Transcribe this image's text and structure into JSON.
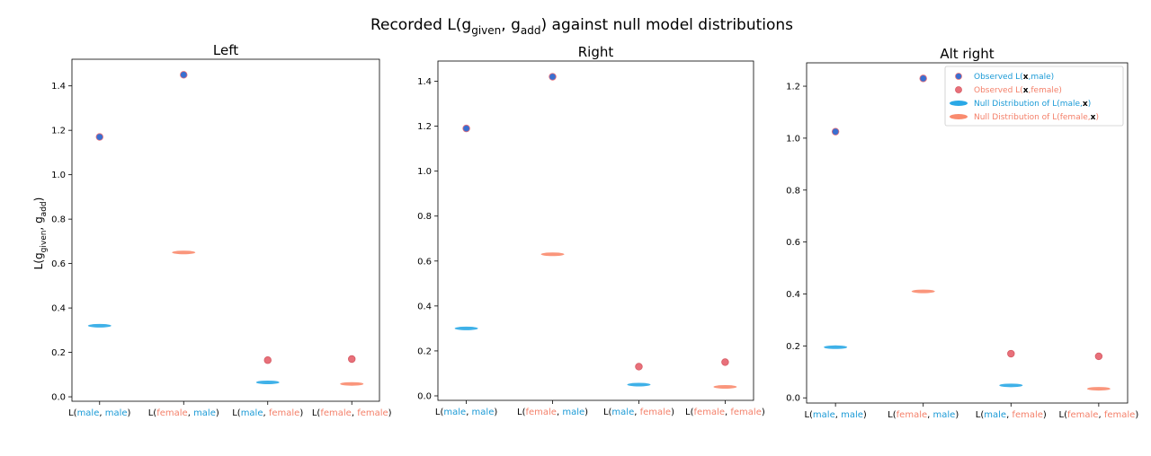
{
  "colors": {
    "male": "#1a9ad6",
    "female": "#f4806a",
    "observed_male_face": "#3a6fd0",
    "observed_male_edge": "#e8707a",
    "observed_female_face": "#e8707a",
    "null_male": "#2aa8e6",
    "null_female": "#f98b6e",
    "axes": "#000000"
  },
  "chart_data": [
    {
      "type": "scatter",
      "title": "Left",
      "ylim": [
        -0.02,
        1.52
      ],
      "yticks": [
        0.0,
        0.2,
        0.4,
        0.6,
        0.8,
        1.0,
        1.2,
        1.4
      ],
      "ytick_labels": [
        "0.0",
        "0.2",
        "0.4",
        "0.6",
        "0.8",
        "1.0",
        "1.2",
        "1.4"
      ],
      "categories": [
        {
          "prefix": "L(",
          "a": "male",
          "sep": ", ",
          "b": "male",
          "suffix": ")"
        },
        {
          "prefix": "L(",
          "a": "female",
          "sep": ", ",
          "b": "male",
          "suffix": ")"
        },
        {
          "prefix": "L(",
          "a": "male",
          "sep": ", ",
          "b": "female",
          "suffix": ")"
        },
        {
          "prefix": "L(",
          "a": "female",
          "sep": ", ",
          "b": "female",
          "suffix": ")"
        }
      ],
      "observed_values": [
        1.17,
        1.45,
        0.165,
        0.17
      ],
      "null_values": [
        0.32,
        0.65,
        0.065,
        0.058
      ],
      "legend": false
    },
    {
      "type": "scatter",
      "title": "Right",
      "ylim": [
        -0.02,
        1.49
      ],
      "yticks": [
        0.0,
        0.2,
        0.4,
        0.6,
        0.8,
        1.0,
        1.2,
        1.4
      ],
      "ytick_labels": [
        "0.0",
        "0.2",
        "0.4",
        "0.6",
        "0.8",
        "1.0",
        "1.2",
        "1.4"
      ],
      "categories": [
        {
          "prefix": "L(",
          "a": "male",
          "sep": ", ",
          "b": "male",
          "suffix": ")"
        },
        {
          "prefix": "L(",
          "a": "female",
          "sep": ", ",
          "b": "male",
          "suffix": ")"
        },
        {
          "prefix": "L(",
          "a": "male",
          "sep": ", ",
          "b": "female",
          "suffix": ")"
        },
        {
          "prefix": "L(",
          "a": "female",
          "sep": ", ",
          "b": "female",
          "suffix": ")"
        }
      ],
      "observed_values": [
        1.19,
        1.42,
        0.13,
        0.15
      ],
      "null_values": [
        0.3,
        0.63,
        0.05,
        0.04
      ],
      "legend": false
    },
    {
      "type": "scatter",
      "title": "Alt right",
      "ylim": [
        -0.02,
        1.29
      ],
      "yticks": [
        0.0,
        0.2,
        0.4,
        0.6,
        0.8,
        1.0,
        1.2
      ],
      "ytick_labels": [
        "0.0",
        "0.2",
        "0.4",
        "0.6",
        "0.8",
        "1.0",
        "1.2"
      ],
      "categories": [
        {
          "prefix": "L(",
          "a": "male",
          "sep": ", ",
          "b": "male",
          "suffix": ")"
        },
        {
          "prefix": "L(",
          "a": "female",
          "sep": ", ",
          "b": "male",
          "suffix": ")"
        },
        {
          "prefix": "L(",
          "a": "male",
          "sep": ", ",
          "b": "female",
          "suffix": ")"
        },
        {
          "prefix": "L(",
          "a": "female",
          "sep": ", ",
          "b": "female",
          "suffix": ")"
        }
      ],
      "observed_values": [
        1.025,
        1.23,
        0.17,
        0.16
      ],
      "null_values": [
        0.195,
        0.41,
        0.048,
        0.035
      ],
      "legend": true,
      "legend_position": "top-right"
    }
  ],
  "figure": {
    "suptitle_prefix": "Recorded L(g",
    "suptitle_sub1": "given",
    "suptitle_mid": ", g",
    "suptitle_sub2": "add",
    "suptitle_suffix": ") against null model distributions",
    "ylabel_prefix": "L(g",
    "ylabel_sub1": "given",
    "ylabel_mid": ", g",
    "ylabel_sub2": "add",
    "ylabel_suffix": ")"
  },
  "legend": {
    "entries": [
      {
        "kind": "observed_male",
        "text_prefix": "Observed L(",
        "text_bold": "x",
        "text_suffix": ",male)",
        "color": "#1a9ad6"
      },
      {
        "kind": "observed_female",
        "text_prefix": "Observed L(",
        "text_bold": "x",
        "text_suffix": ",female)",
        "color": "#f4806a"
      },
      {
        "kind": "null_male",
        "text_prefix": "Null Distribution of L(male,",
        "text_bold": "x",
        "text_suffix": ")",
        "color": "#1a9ad6"
      },
      {
        "kind": "null_female",
        "text_prefix": "Null Distribution of L(female,",
        "text_bold": "x",
        "text_suffix": ")",
        "color": "#f4806a"
      }
    ]
  }
}
